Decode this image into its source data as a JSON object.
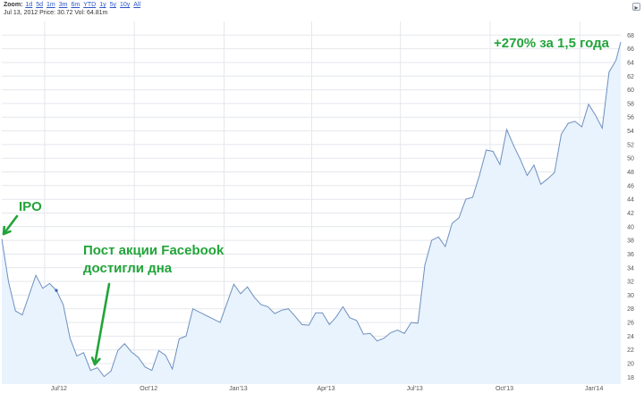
{
  "toolbar": {
    "zoom_label": "Zoom:",
    "zoom_options": [
      "1d",
      "5d",
      "1m",
      "3m",
      "6m",
      "YTD",
      "1y",
      "5y",
      "10y",
      "All"
    ],
    "info": "Jul 13, 2012 Price: 30.72 Vol: 64.81m"
  },
  "colors": {
    "line": "#6e8fc0",
    "fill": "#e8f3fd",
    "annotation": "#22a43a",
    "grid": "#e4e7ec"
  },
  "chart_data": {
    "type": "area",
    "title": "",
    "xlabel": "",
    "ylabel": "",
    "ylim": [
      17,
      70
    ],
    "y_ticks": [
      18,
      20,
      22,
      24,
      26,
      28,
      30,
      32,
      34,
      36,
      38,
      40,
      42,
      44,
      46,
      48,
      50,
      52,
      54,
      56,
      58,
      60,
      62,
      64,
      66,
      68
    ],
    "y_axis_position": "right",
    "grid": true,
    "x_labels": [
      "Jul'12",
      "Oct'12",
      "Jan'13",
      "Apr'13",
      "Jul'13",
      "Oct'13",
      "Jan'14"
    ],
    "x_label_dates": [
      "2012-07-01",
      "2012-10-01",
      "2013-01-01",
      "2013-04-01",
      "2013-07-01",
      "2013-10-01",
      "2014-01-01"
    ],
    "x_range": [
      "2012-05-18",
      "2014-02-12"
    ],
    "series": [
      {
        "values": [
          [
            "2012-05-18",
            38.2
          ],
          [
            "2012-05-25",
            31.9
          ],
          [
            "2012-06-01",
            27.7
          ],
          [
            "2012-06-08",
            27.1
          ],
          [
            "2012-06-15",
            30.0
          ],
          [
            "2012-06-22",
            32.9
          ],
          [
            "2012-06-29",
            31.0
          ],
          [
            "2012-07-06",
            31.7
          ],
          [
            "2012-07-13",
            30.7
          ],
          [
            "2012-07-20",
            28.6
          ],
          [
            "2012-07-27",
            23.7
          ],
          [
            "2012-08-03",
            21.1
          ],
          [
            "2012-08-10",
            21.6
          ],
          [
            "2012-08-17",
            19.0
          ],
          [
            "2012-08-24",
            19.4
          ],
          [
            "2012-08-31",
            18.1
          ],
          [
            "2012-09-07",
            18.9
          ],
          [
            "2012-09-14",
            21.9
          ],
          [
            "2012-09-21",
            22.9
          ],
          [
            "2012-09-28",
            21.7
          ],
          [
            "2012-10-05",
            20.9
          ],
          [
            "2012-10-12",
            19.5
          ],
          [
            "2012-10-19",
            19.0
          ],
          [
            "2012-10-26",
            21.9
          ],
          [
            "2012-11-02",
            21.2
          ],
          [
            "2012-11-09",
            19.2
          ],
          [
            "2012-11-16",
            23.6
          ],
          [
            "2012-11-23",
            24.0
          ],
          [
            "2012-11-30",
            28.0
          ],
          [
            "2012-12-07",
            27.5
          ],
          [
            "2012-12-14",
            27.0
          ],
          [
            "2012-12-21",
            26.5
          ],
          [
            "2012-12-28",
            26.0
          ],
          [
            "2013-01-04",
            28.8
          ],
          [
            "2013-01-11",
            31.6
          ],
          [
            "2013-01-18",
            30.2
          ],
          [
            "2013-01-25",
            31.2
          ],
          [
            "2013-02-01",
            29.7
          ],
          [
            "2013-02-08",
            28.6
          ],
          [
            "2013-02-15",
            28.3
          ],
          [
            "2013-02-22",
            27.3
          ],
          [
            "2013-03-01",
            27.8
          ],
          [
            "2013-03-08",
            28.0
          ],
          [
            "2013-03-15",
            26.9
          ],
          [
            "2013-03-22",
            25.7
          ],
          [
            "2013-03-29",
            25.6
          ],
          [
            "2013-04-05",
            27.4
          ],
          [
            "2013-04-12",
            27.4
          ],
          [
            "2013-04-19",
            25.7
          ],
          [
            "2013-04-26",
            26.8
          ],
          [
            "2013-05-03",
            28.3
          ],
          [
            "2013-05-10",
            26.7
          ],
          [
            "2013-05-17",
            26.3
          ],
          [
            "2013-05-24",
            24.3
          ],
          [
            "2013-05-31",
            24.4
          ],
          [
            "2013-06-07",
            23.3
          ],
          [
            "2013-06-14",
            23.7
          ],
          [
            "2013-06-21",
            24.5
          ],
          [
            "2013-06-28",
            24.9
          ],
          [
            "2013-07-05",
            24.4
          ],
          [
            "2013-07-12",
            26.0
          ],
          [
            "2013-07-19",
            25.9
          ],
          [
            "2013-07-26",
            34.4
          ],
          [
            "2013-08-02",
            38.0
          ],
          [
            "2013-08-09",
            38.5
          ],
          [
            "2013-08-16",
            37.1
          ],
          [
            "2013-08-23",
            40.5
          ],
          [
            "2013-08-30",
            41.3
          ],
          [
            "2013-09-06",
            44.0
          ],
          [
            "2013-09-13",
            44.3
          ],
          [
            "2013-09-20",
            47.5
          ],
          [
            "2013-09-27",
            51.2
          ],
          [
            "2013-10-04",
            51.0
          ],
          [
            "2013-10-11",
            49.1
          ],
          [
            "2013-10-18",
            54.2
          ],
          [
            "2013-10-25",
            51.9
          ],
          [
            "2013-11-01",
            49.8
          ],
          [
            "2013-11-08",
            47.5
          ],
          [
            "2013-11-15",
            49.0
          ],
          [
            "2013-11-22",
            46.2
          ],
          [
            "2013-11-29",
            47.0
          ],
          [
            "2013-12-06",
            47.9
          ],
          [
            "2013-12-13",
            53.5
          ],
          [
            "2013-12-20",
            55.1
          ],
          [
            "2013-12-27",
            55.4
          ],
          [
            "2014-01-03",
            54.6
          ],
          [
            "2014-01-10",
            57.9
          ],
          [
            "2014-01-17",
            56.3
          ],
          [
            "2014-01-24",
            54.4
          ],
          [
            "2014-01-31",
            62.6
          ],
          [
            "2014-02-07",
            64.3
          ],
          [
            "2014-02-12",
            67.0
          ]
        ]
      }
    ],
    "highlight_point": [
      "2012-07-13",
      30.7
    ],
    "annotations": [
      {
        "text": "IPO",
        "x": "2012-05-18",
        "y": 38.2
      },
      {
        "text": "Пост акции Facebook достигли дна",
        "lines": [
          "Пост акции Facebook",
          "достигли дна"
        ],
        "x": "2012-08-24",
        "y": 19.4
      },
      {
        "text": "+270% за 1,5 года",
        "x": "2013-11-15",
        "y": 67.0
      }
    ]
  }
}
